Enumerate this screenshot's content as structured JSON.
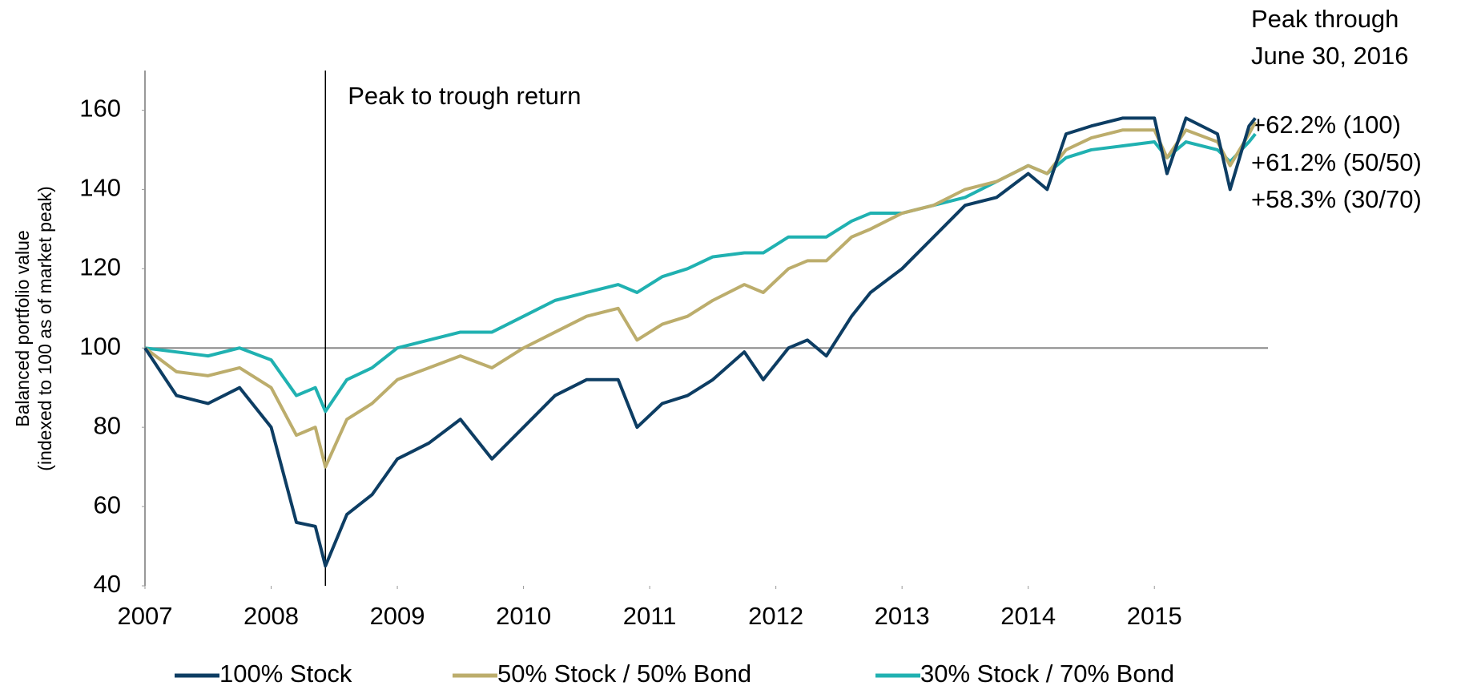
{
  "chart_data": {
    "type": "line",
    "y_label": [
      "Balanced portfolio value",
      "(indexed to 100 as of market peak)"
    ],
    "annotation": "Peak to trough return",
    "side_note": {
      "title": [
        "Peak through",
        "June 30, 2016"
      ],
      "lines": [
        "+62.2% (100)",
        "+61.2% (50/50)",
        "+58.3% (30/70)"
      ]
    },
    "x": [
      2007,
      2007.25,
      2007.5,
      2007.75,
      2008,
      2008.2,
      2008.35,
      2008.43,
      2008.6,
      2008.8,
      2009,
      2009.25,
      2009.5,
      2009.75,
      2010,
      2010.25,
      2010.5,
      2010.75,
      2010.9,
      2011.1,
      2011.3,
      2011.5,
      2011.75,
      2011.9,
      2012.1,
      2012.25,
      2012.4,
      2012.6,
      2012.75,
      2013,
      2013.25,
      2013.5,
      2013.75,
      2014,
      2014.15,
      2014.3,
      2014.5,
      2014.75,
      2015,
      2015.1,
      2015.25,
      2015.5,
      2015.6,
      2015.75,
      2015.8
    ],
    "series": [
      {
        "name": "100% Stock",
        "color": "#0d3d63",
        "values": [
          100,
          88,
          86,
          90,
          80,
          56,
          55,
          45,
          58,
          63,
          72,
          76,
          82,
          72,
          80,
          88,
          92,
          92,
          80,
          86,
          88,
          92,
          99,
          92,
          100,
          102,
          98,
          108,
          114,
          120,
          128,
          136,
          138,
          144,
          140,
          154,
          156,
          158,
          158,
          144,
          158,
          154,
          140,
          156,
          158
        ]
      },
      {
        "name": "50% Stock / 50% Bond",
        "color": "#bcad6c",
        "values": [
          100,
          94,
          93,
          95,
          90,
          78,
          80,
          70,
          82,
          86,
          92,
          95,
          98,
          95,
          100,
          104,
          108,
          110,
          102,
          106,
          108,
          112,
          116,
          114,
          120,
          122,
          122,
          128,
          130,
          134,
          136,
          140,
          142,
          146,
          144,
          150,
          153,
          155,
          155,
          148,
          155,
          152,
          146,
          154,
          157
        ]
      },
      {
        "name": "30% Stock / 70% Bond",
        "color": "#20b1b1",
        "values": [
          100,
          99,
          98,
          100,
          97,
          88,
          90,
          84,
          92,
          95,
          100,
          102,
          104,
          104,
          108,
          112,
          114,
          116,
          114,
          118,
          120,
          123,
          124,
          124,
          128,
          128,
          128,
          132,
          134,
          134,
          136,
          138,
          142,
          146,
          144,
          148,
          150,
          151,
          152,
          148,
          152,
          150,
          147,
          152,
          154
        ]
      }
    ],
    "xlim": [
      2007,
      2015.9
    ],
    "xticks": [
      2007,
      2008,
      2009,
      2010,
      2011,
      2012,
      2013,
      2014,
      2015
    ],
    "ylim": [
      40,
      170
    ],
    "yticks": [
      40,
      60,
      80,
      100,
      120,
      140,
      160
    ],
    "reference_y": 100,
    "legend": "bottom"
  }
}
